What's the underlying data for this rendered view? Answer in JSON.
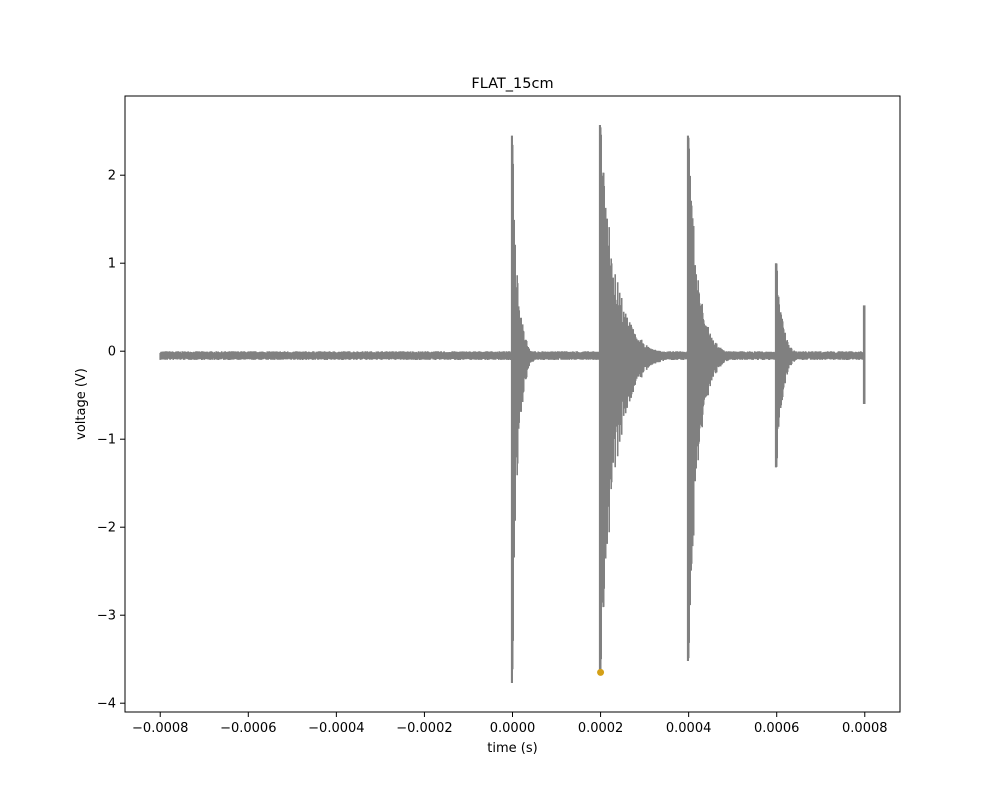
{
  "chart_data": {
    "type": "line",
    "title": "FLAT_15cm",
    "xlabel": "time (s)",
    "ylabel": "voltage (V)",
    "xlim": [
      -0.00088,
      0.00088
    ],
    "ylim": [
      -4.1,
      2.9
    ],
    "xticks": [
      -0.0008,
      -0.0006,
      -0.0004,
      -0.0002,
      0.0,
      0.0002,
      0.0004,
      0.0006,
      0.0008
    ],
    "xtick_labels": [
      "−0.0008",
      "−0.0006",
      "−0.0004",
      "−0.0002",
      "0.0000",
      "0.0002",
      "0.0004",
      "0.0006",
      "0.0008"
    ],
    "yticks": [
      -4,
      -3,
      -2,
      -1,
      0,
      1,
      2
    ],
    "ytick_labels": [
      "−4",
      "−3",
      "−2",
      "−1",
      "0",
      "1",
      "2"
    ],
    "grid": false,
    "legend": "none",
    "series": [
      {
        "color": "#808080",
        "x_range": [
          -0.0008,
          0.0008
        ],
        "baseline": -0.05,
        "noise_band": [
          -0.08,
          -0.02
        ],
        "bursts": [
          {
            "t": 0.0,
            "max": 2.45,
            "min": -3.77,
            "decay": 1.2e-05
          },
          {
            "t": 0.0002,
            "max": 2.57,
            "min": -3.65,
            "decay": 3.5e-05
          },
          {
            "t": 0.0004,
            "max": 2.45,
            "min": -3.52,
            "decay": 2.2e-05
          },
          {
            "t": 0.0006,
            "max": 1.0,
            "min": -1.32,
            "decay": 1.4e-05
          },
          {
            "t": 0.0008,
            "max": 0.52,
            "min": -0.6,
            "decay": 6e-06
          }
        ]
      }
    ],
    "markers": [
      {
        "x": 0.0002,
        "y": -3.65,
        "color": "#d4a017"
      }
    ]
  }
}
